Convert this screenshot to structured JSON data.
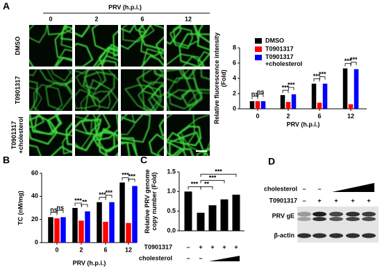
{
  "figure": {
    "microscopy": {
      "panel": "A",
      "title": "PRV (h.p.i.)",
      "columns": [
        "0",
        "2",
        "6",
        "12"
      ],
      "rows": [
        "DMSO",
        "T0901317",
        "T0901317\n+cholesterol"
      ]
    },
    "blot": {
      "panel": "D",
      "treatments": [
        {
          "label": "cholesterol",
          "signs": [
            "–",
            "–"
          ]
        },
        {
          "label": "T0901317",
          "signs": [
            "–",
            "+",
            "+",
            "+",
            "+"
          ]
        }
      ],
      "bands": [
        "PRV gE",
        "β-actin"
      ]
    }
  },
  "chart_data": [
    {
      "type": "bar",
      "ylabel": "Relative fluorescence intensity\n(Fold)",
      "xlabel": "PRV (h.p.i.)",
      "categories": [
        "0",
        "2",
        "6",
        "12"
      ],
      "series": [
        {
          "name": "DMSO",
          "color": "#000000",
          "values": [
            1,
            1.8,
            3.3,
            5.3
          ]
        },
        {
          "name": "T0901317",
          "color": "#ff0000",
          "values": [
            1,
            0.9,
            0.8,
            0.6
          ]
        },
        {
          "name": "T0901317\n+cholesterol",
          "color": "#0000ff",
          "values": [
            1,
            1.9,
            3.3,
            5.2
          ]
        }
      ],
      "ylim": [
        0,
        8
      ],
      "yticks": [
        0,
        2,
        4,
        6,
        8
      ],
      "legend": "upper left",
      "annotations": [
        "ns",
        "ns",
        "***",
        "***",
        "***",
        "***",
        "***",
        "***"
      ]
    },
    {
      "type": "bar",
      "panel": "B",
      "ylabel": "TC (nM/mg)",
      "xlabel": "PRV (h.p.i.)",
      "categories": [
        "0",
        "2",
        "6",
        "12"
      ],
      "series": [
        {
          "color": "#000000",
          "values": [
            22,
            30,
            35,
            52
          ]
        },
        {
          "color": "#ff0000",
          "values": [
            21,
            19,
            18,
            17
          ]
        },
        {
          "color": "#0000ff",
          "values": [
            22,
            27,
            35,
            49
          ]
        }
      ],
      "ylim": [
        0,
        60
      ],
      "yticks": [
        0,
        20,
        40,
        60
      ],
      "annotations": [
        "ns",
        "ns",
        "***",
        "**",
        "***",
        "***",
        "***",
        "***"
      ]
    },
    {
      "type": "bar",
      "panel": "C",
      "ylabel": "Relative PRV genome\ncopy number (Fold)",
      "values": [
        1,
        0.46,
        0.65,
        0.8,
        0.92
      ],
      "color": "#000000",
      "ylim": [
        0,
        1.5
      ],
      "yticks": [
        {
          "value": 0,
          "label": "0.0"
        },
        {
          "value": 0.5,
          "label": "0.5"
        },
        {
          "value": 1,
          "label": "1.0"
        },
        {
          "value": 1.5,
          "label": "1.5"
        }
      ],
      "treatments": [
        {
          "label": "T0901317",
          "signs": [
            "–",
            "+",
            "+",
            "+",
            "+"
          ]
        },
        {
          "label": "cholesterol",
          "signs": [
            "–",
            "–"
          ]
        }
      ],
      "annotations": [
        "***",
        "**",
        "***",
        "***"
      ]
    }
  ]
}
